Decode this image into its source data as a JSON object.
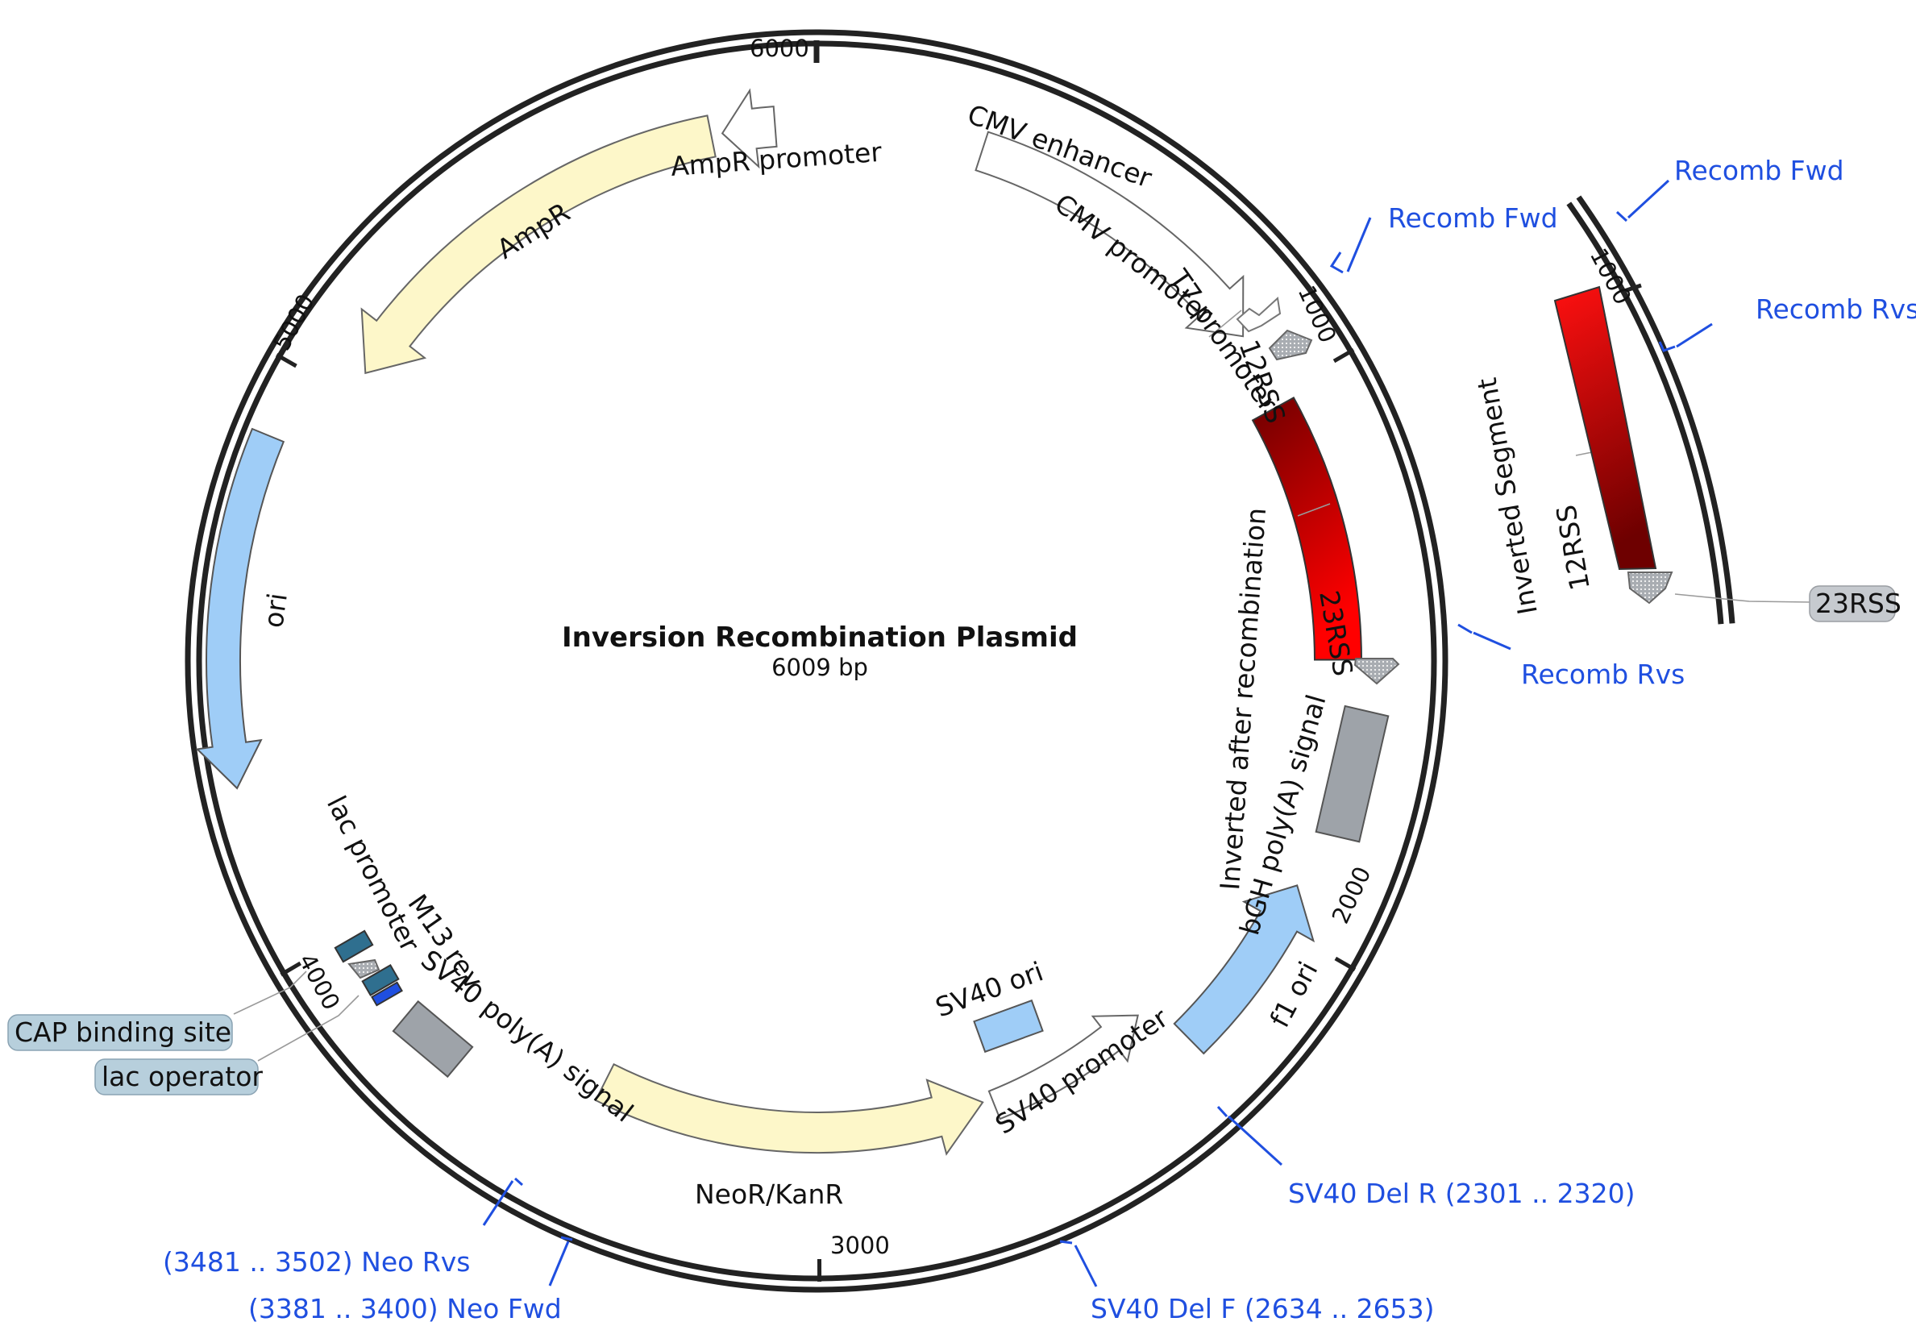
{
  "plasmid": {
    "name": "Inversion Recombination Plasmid",
    "size": "6009 bp"
  },
  "ticks": [
    "1000",
    "2000",
    "3000",
    "4000",
    "5000",
    "6000"
  ],
  "features": {
    "ampr_promoter": "AmpR promoter",
    "ampr": "AmpR",
    "cmv_enhancer": "CMV enhancer",
    "cmv_promoter": "CMV promoter",
    "t7_promoter": "T7 promoter",
    "rss12": "12RSS",
    "inverted_after": "Inverted after recombination",
    "rss23": "23RSS",
    "bgh": "bGH poly(A) signal",
    "f1_ori": "f1 ori",
    "sv40_promoter": "SV40 promoter",
    "sv40_ori": "SV40 ori",
    "neo": "NeoR/KanR",
    "sv40_polya": "SV40 poly(A) signal",
    "m13_rev": "M13 rev",
    "lac_promoter": "lac promoter",
    "ori": "ori",
    "cap_site": "CAP binding site",
    "lac_operator": "lac operator"
  },
  "primers": {
    "recomb_fwd": "Recomb Fwd",
    "recomb_rvs": "Recomb Rvs",
    "sv40_del_r": "SV40 Del R  (2301 .. 2320)",
    "sv40_del_f": "SV40 Del F  (2634 .. 2653)",
    "neo_rvs": "(3481 .. 3502)  Neo Rvs",
    "neo_fwd": "(3381 .. 3400)  Neo Fwd"
  },
  "inset": {
    "tick": "1000",
    "segment": "Inverted Segment",
    "rss12": "12RSS",
    "rss23": "23RSS",
    "recomb_fwd": "Recomb Fwd",
    "recomb_rvs": "Recomb Rvs"
  },
  "colors": {
    "ampr": "#fdf7c9",
    "ori": "#9fcdf7",
    "polya": "#9ea3a9",
    "primer": "#1f4fe0",
    "segment_dark": "#7a0000",
    "segment_light": "#ff0000",
    "lac_dark": "#2f6f8f",
    "tag_bg": "#b7cfdc"
  }
}
